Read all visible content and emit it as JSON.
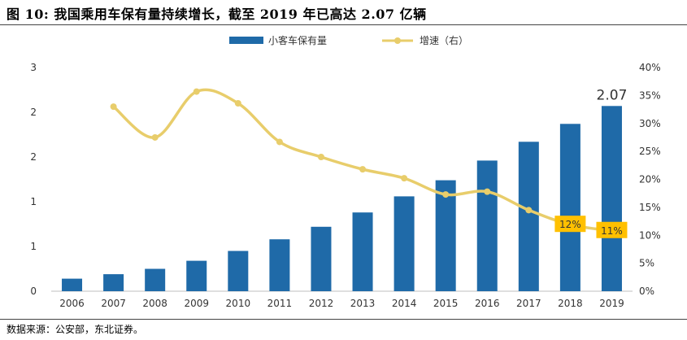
{
  "title": "图  10: 我国乘用车保有量持续增长，截至 2019 年已高达 2.07 亿辆",
  "source": "数据来源：公安部，东北证券。",
  "chart_data": {
    "type": "bar+line",
    "categories": [
      "2006",
      "2007",
      "2008",
      "2009",
      "2010",
      "2011",
      "2012",
      "2013",
      "2014",
      "2015",
      "2016",
      "2017",
      "2018",
      "2019"
    ],
    "series": [
      {
        "name": "小客车保有量",
        "type": "bar",
        "axis": "left",
        "values": [
          0.14,
          0.19,
          0.25,
          0.34,
          0.45,
          0.58,
          0.72,
          0.88,
          1.06,
          1.24,
          1.46,
          1.67,
          1.87,
          2.07
        ],
        "color": "#1f6aa8"
      },
      {
        "name": "增速（右）",
        "type": "line",
        "axis": "right",
        "values": [
          null,
          33.0,
          27.5,
          35.7,
          33.6,
          26.7,
          24.0,
          21.8,
          20.2,
          17.3,
          17.8,
          14.5,
          11.9,
          10.8
        ],
        "color": "#e8cd6b"
      }
    ],
    "left_axis": {
      "ylim": [
        0,
        2.5
      ],
      "tick_labels": [
        "0",
        "1",
        "1",
        "2",
        "2",
        "3"
      ]
    },
    "right_axis": {
      "ylim": [
        0,
        40
      ],
      "tick_labels": [
        "0%",
        "5%",
        "10%",
        "15%",
        "20%",
        "25%",
        "30%",
        "35%",
        "40%"
      ]
    },
    "annotations": [
      {
        "label": "2.07",
        "category": "2019",
        "series": "小客车保有量"
      },
      {
        "label": "12%",
        "category": "2018",
        "series": "增速（右）"
      },
      {
        "label": "11%",
        "category": "2019",
        "series": "增速（右）"
      }
    ],
    "legend_position": "top-center",
    "grid": false
  }
}
